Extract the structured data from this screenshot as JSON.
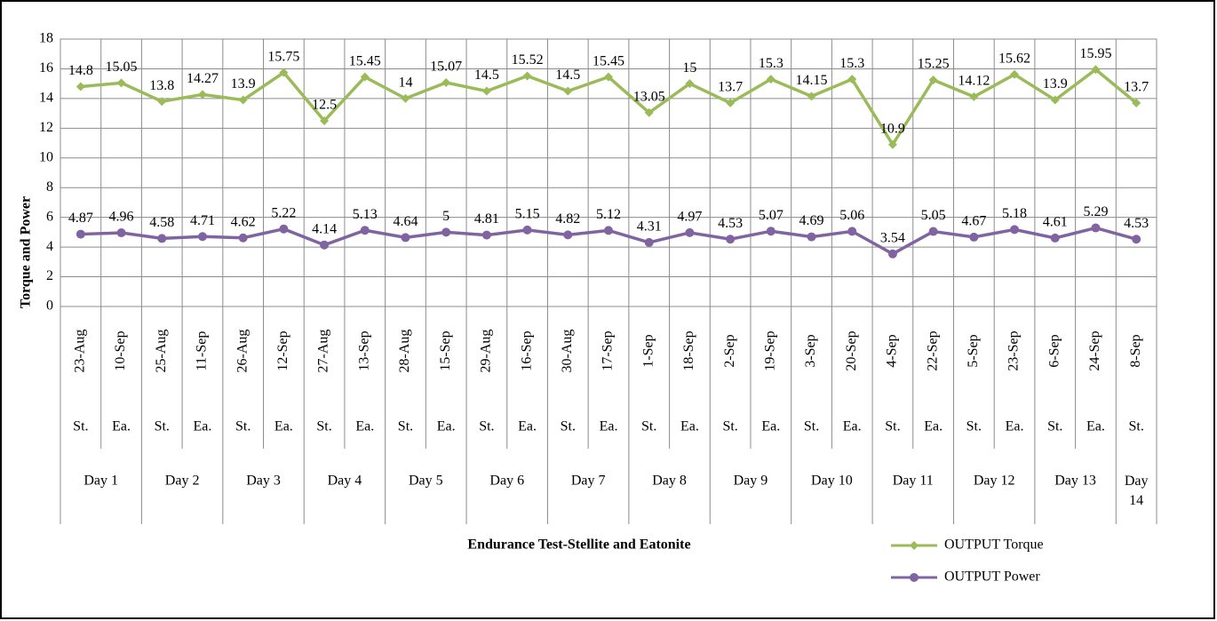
{
  "chart_data": {
    "type": "line",
    "ylabel": "Torque and Power",
    "xlabel": "Endurance Test-Stellite and Eatonite",
    "categories": [
      "23-Aug",
      "10-Sep",
      "25-Aug",
      "11-Sep",
      "26-Aug",
      "12-Sep",
      "27-Aug",
      "13-Sep",
      "28-Aug",
      "15-Sep",
      "29-Aug",
      "16-Sep",
      "30-Aug",
      "17-Sep",
      "1-Sep",
      "18-Sep",
      "2-Sep",
      "19-Sep",
      "3-Sep",
      "20-Sep",
      "4-Sep",
      "22-Sep",
      "5-Sep",
      "23-Sep",
      "6-Sep",
      "24-Sep",
      "8-Sep"
    ],
    "material": [
      "St.",
      "Ea.",
      "St.",
      "Ea.",
      "St.",
      "Ea.",
      "St.",
      "Ea.",
      "St.",
      "Ea.",
      "St.",
      "Ea.",
      "St.",
      "Ea.",
      "St.",
      "Ea.",
      "St.",
      "Ea.",
      "St.",
      "Ea.",
      "St.",
      "Ea.",
      "St.",
      "Ea.",
      "St.",
      "Ea.",
      "St."
    ],
    "days": [
      "Day 1",
      null,
      "Day 2",
      null,
      "Day 3",
      null,
      "Day 4",
      null,
      "Day 5",
      null,
      "Day 6",
      null,
      "Day 7",
      null,
      "Day 8",
      null,
      "Day 9",
      null,
      "Day 10",
      null,
      "Day 11",
      null,
      "Day 12",
      null,
      "Day 13",
      null,
      "Day 14"
    ],
    "series": [
      {
        "name": "OUTPUT Torque",
        "color": "#9bbb59",
        "marker": "diamond",
        "values": [
          14.8,
          15.05,
          13.8,
          14.27,
          13.9,
          15.75,
          12.5,
          15.45,
          14,
          15.07,
          14.5,
          15.52,
          14.5,
          15.45,
          13.05,
          15,
          13.7,
          15.3,
          14.15,
          15.3,
          10.9,
          15.25,
          14.12,
          15.62,
          13.9,
          15.95,
          13.7
        ]
      },
      {
        "name": "OUTPUT Power",
        "color": "#8064a2",
        "marker": "circle",
        "values": [
          4.87,
          4.96,
          4.58,
          4.71,
          4.62,
          5.22,
          4.14,
          5.13,
          4.64,
          5,
          4.81,
          5.15,
          4.82,
          5.12,
          4.31,
          4.97,
          4.53,
          5.07,
          4.69,
          5.06,
          3.54,
          5.05,
          4.67,
          5.18,
          4.61,
          5.29,
          4.53
        ]
      }
    ],
    "ylim": [
      0,
      18
    ],
    "yticks": [
      0,
      2,
      4,
      6,
      8,
      10,
      12,
      14,
      16,
      18
    ],
    "grid": true,
    "data_labels": true,
    "legend": "bottom-right"
  }
}
